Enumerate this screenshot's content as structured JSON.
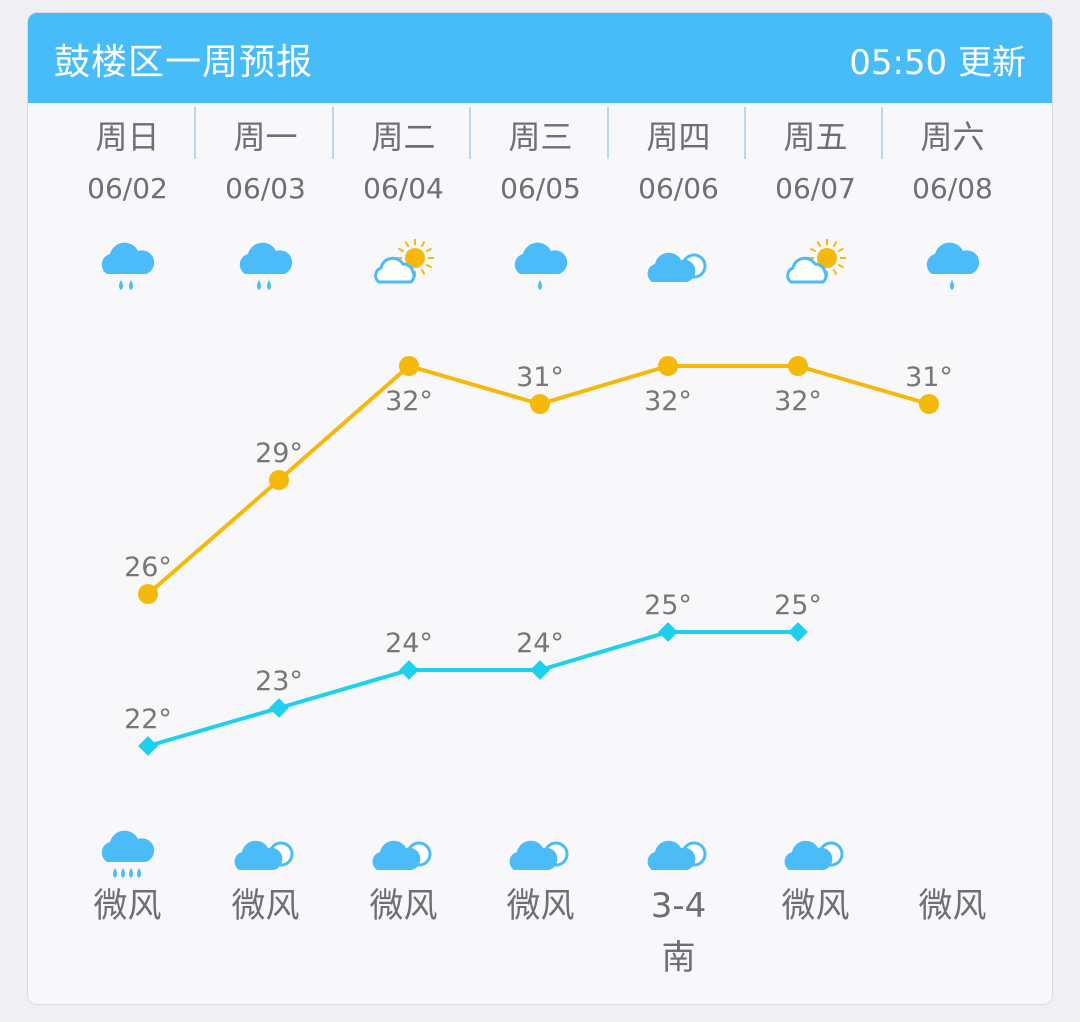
{
  "header": {
    "title": "鼓楼区一周预报",
    "updated": "05:50 更新"
  },
  "colors": {
    "header": "#48bcf9",
    "high": "#f5b90c",
    "low": "#1fd0ee",
    "icon_blue": "#4bbcf8",
    "sun": "#f5b90c"
  },
  "days": [
    {
      "week": "周日",
      "date": "06/02",
      "day_icon": "light-rain",
      "night_icon": "heavy-rain",
      "wind": "微风"
    },
    {
      "week": "周一",
      "date": "06/03",
      "day_icon": "light-rain",
      "night_icon": "cloudy",
      "wind": "微风"
    },
    {
      "week": "周二",
      "date": "06/04",
      "day_icon": "partly-cloudy",
      "night_icon": "cloudy",
      "wind": "微风"
    },
    {
      "week": "周三",
      "date": "06/05",
      "day_icon": "drizzle",
      "night_icon": "cloudy",
      "wind": "微风"
    },
    {
      "week": "周四",
      "date": "06/06",
      "day_icon": "cloudy",
      "night_icon": "cloudy",
      "wind": "3-4",
      "wind_dir": "南"
    },
    {
      "week": "周五",
      "date": "06/07",
      "day_icon": "partly-cloudy",
      "night_icon": "cloudy",
      "wind": "微风"
    },
    {
      "week": "周六",
      "date": "06/08",
      "day_icon": "drizzle",
      "night_icon": "",
      "wind": "微风"
    }
  ],
  "chart_data": {
    "type": "line",
    "categories": [
      "06/02",
      "06/03",
      "06/04",
      "06/05",
      "06/06",
      "06/07",
      "06/08"
    ],
    "series": [
      {
        "values": [
          26,
          29,
          32,
          31,
          32,
          32,
          31
        ],
        "labels": [
          "26°",
          "29°",
          "32°",
          "31°",
          "32°",
          "32°",
          "31°"
        ]
      },
      {
        "values": [
          22,
          23,
          24,
          24,
          25,
          25,
          null
        ],
        "labels": [
          "22°",
          "23°",
          "24°",
          "24°",
          "25°",
          "25°",
          ""
        ]
      }
    ]
  }
}
